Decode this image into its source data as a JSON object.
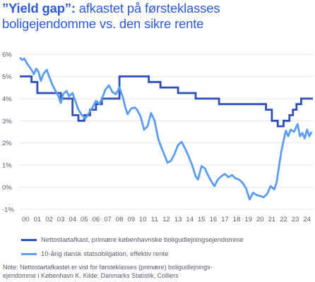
{
  "header": {
    "title_bold": "”Yield gap”:",
    "title_rest": " afkastet på førsteklasses",
    "title_line2": "boligejendomme vs. den sikre rente"
  },
  "colors": {
    "title": "#2e5bd7",
    "series_yield": "#2e4fb8",
    "series_bond": "#5b9cf5",
    "grid": "#e3e6ec",
    "text": "#555b6b"
  },
  "note": {
    "line1": "Note: Nettostartafkastet er vist for førsteklasses (primære) boligudlejnings-",
    "line2": "ejendomme i København K. Kilde: Danmarks Statistik, Colliers"
  },
  "chart_data": {
    "type": "line",
    "title": "”Yield gap”: afkastet på førsteklasses boligejendomme vs. den sikre rente",
    "xlabel": "",
    "ylabel": "",
    "xlim": [
      2000,
      2025
    ],
    "ylim": [
      -1,
      6
    ],
    "y_ticks": [
      -1,
      0,
      1,
      2,
      3,
      4,
      5,
      6
    ],
    "y_tick_labels": [
      "-1%",
      "0%",
      "1%",
      "2%",
      "3%",
      "4%",
      "5%",
      "6%"
    ],
    "x_ticks": [
      2000,
      2001,
      2002,
      2003,
      2004,
      2005,
      2006,
      2007,
      2008,
      2009,
      2010,
      2011,
      2012,
      2013,
      2014,
      2015,
      2016,
      2017,
      2018,
      2019,
      2020,
      2021,
      2022,
      2023,
      2024
    ],
    "x_tick_labels": [
      "00",
      "01",
      "02",
      "03",
      "04",
      "05",
      "06",
      "07",
      "08",
      "09",
      "10",
      "11",
      "12",
      "13",
      "14",
      "15",
      "16",
      "17",
      "18",
      "19",
      "20",
      "21",
      "22",
      "23",
      "24"
    ],
    "grid": true,
    "legend_position": "bottom",
    "series": [
      {
        "name": "Nettostartafkast, primære københavnske boligudlejningsejendomme",
        "color": "#2e4fb8",
        "step": true,
        "points": [
          [
            2000.0,
            5.0
          ],
          [
            2001.0,
            5.0
          ],
          [
            2001.0,
            4.75
          ],
          [
            2001.5,
            4.75
          ],
          [
            2001.5,
            4.25
          ],
          [
            2003.5,
            4.25
          ],
          [
            2003.5,
            4.0
          ],
          [
            2004.5,
            4.0
          ],
          [
            2004.5,
            3.25
          ],
          [
            2005.0,
            3.25
          ],
          [
            2005.0,
            3.0
          ],
          [
            2005.5,
            3.0
          ],
          [
            2005.5,
            3.25
          ],
          [
            2006.0,
            3.25
          ],
          [
            2006.0,
            3.5
          ],
          [
            2006.5,
            3.5
          ],
          [
            2006.5,
            3.75
          ],
          [
            2007.0,
            3.75
          ],
          [
            2007.0,
            4.0
          ],
          [
            2008.5,
            4.0
          ],
          [
            2008.5,
            5.0
          ],
          [
            2011.0,
            5.0
          ],
          [
            2011.0,
            4.75
          ],
          [
            2012.0,
            4.75
          ],
          [
            2012.0,
            4.5
          ],
          [
            2013.5,
            4.5
          ],
          [
            2013.5,
            4.25
          ],
          [
            2015.0,
            4.25
          ],
          [
            2015.0,
            4.0
          ],
          [
            2017.0,
            4.0
          ],
          [
            2017.0,
            3.75
          ],
          [
            2021.0,
            3.75
          ],
          [
            2021.0,
            3.5
          ],
          [
            2021.5,
            3.5
          ],
          [
            2021.5,
            3.0
          ],
          [
            2022.0,
            3.0
          ],
          [
            2022.0,
            2.75
          ],
          [
            2022.5,
            2.75
          ],
          [
            2022.5,
            3.0
          ],
          [
            2023.0,
            3.0
          ],
          [
            2023.0,
            3.25
          ],
          [
            2023.3,
            3.25
          ],
          [
            2023.3,
            3.5
          ],
          [
            2023.6,
            3.5
          ],
          [
            2023.6,
            3.75
          ],
          [
            2024.0,
            3.75
          ],
          [
            2024.0,
            4.0
          ],
          [
            2025.0,
            4.0
          ]
        ]
      },
      {
        "name": "10-årig dansk statsobligation, effektiv rente",
        "color": "#5b9cf5",
        "step": false,
        "points": [
          [
            2000.0,
            5.85
          ],
          [
            2000.2,
            5.75
          ],
          [
            2000.4,
            5.8
          ],
          [
            2000.6,
            5.6
          ],
          [
            2000.8,
            5.45
          ],
          [
            2001.0,
            5.3
          ],
          [
            2001.2,
            5.1
          ],
          [
            2001.4,
            5.35
          ],
          [
            2001.6,
            5.2
          ],
          [
            2001.8,
            4.8
          ],
          [
            2002.0,
            5.1
          ],
          [
            2002.3,
            5.3
          ],
          [
            2002.5,
            5.0
          ],
          [
            2002.8,
            4.6
          ],
          [
            2003.0,
            4.4
          ],
          [
            2003.3,
            4.1
          ],
          [
            2003.5,
            3.8
          ],
          [
            2003.7,
            4.2
          ],
          [
            2004.0,
            4.35
          ],
          [
            2004.2,
            4.1
          ],
          [
            2004.5,
            4.25
          ],
          [
            2004.8,
            3.8
          ],
          [
            2005.0,
            3.5
          ],
          [
            2005.3,
            3.25
          ],
          [
            2005.6,
            3.1
          ],
          [
            2005.9,
            3.35
          ],
          [
            2006.2,
            3.6
          ],
          [
            2006.5,
            3.9
          ],
          [
            2006.8,
            3.75
          ],
          [
            2007.0,
            4.0
          ],
          [
            2007.3,
            4.4
          ],
          [
            2007.6,
            4.6
          ],
          [
            2007.9,
            4.3
          ],
          [
            2008.2,
            4.2
          ],
          [
            2008.5,
            4.5
          ],
          [
            2008.8,
            4.05
          ],
          [
            2009.0,
            3.6
          ],
          [
            2009.2,
            3.3
          ],
          [
            2009.5,
            3.55
          ],
          [
            2009.8,
            3.6
          ],
          [
            2010.0,
            3.5
          ],
          [
            2010.3,
            3.2
          ],
          [
            2010.6,
            2.6
          ],
          [
            2010.9,
            2.75
          ],
          [
            2011.2,
            3.35
          ],
          [
            2011.5,
            3.0
          ],
          [
            2011.8,
            2.2
          ],
          [
            2012.0,
            1.9
          ],
          [
            2012.3,
            1.5
          ],
          [
            2012.6,
            1.1
          ],
          [
            2012.9,
            1.2
          ],
          [
            2013.2,
            1.5
          ],
          [
            2013.5,
            1.9
          ],
          [
            2013.8,
            2.05
          ],
          [
            2014.1,
            1.75
          ],
          [
            2014.4,
            1.4
          ],
          [
            2014.7,
            1.0
          ],
          [
            2015.0,
            0.5
          ],
          [
            2015.2,
            0.35
          ],
          [
            2015.5,
            0.95
          ],
          [
            2015.8,
            0.85
          ],
          [
            2016.0,
            0.6
          ],
          [
            2016.3,
            0.3
          ],
          [
            2016.6,
            0.05
          ],
          [
            2016.9,
            0.35
          ],
          [
            2017.2,
            0.5
          ],
          [
            2017.5,
            0.6
          ],
          [
            2017.8,
            0.45
          ],
          [
            2018.1,
            0.55
          ],
          [
            2018.4,
            0.4
          ],
          [
            2018.7,
            0.35
          ],
          [
            2019.0,
            0.2
          ],
          [
            2019.3,
            -0.05
          ],
          [
            2019.6,
            -0.55
          ],
          [
            2019.9,
            -0.25
          ],
          [
            2020.2,
            -0.35
          ],
          [
            2020.5,
            -0.4
          ],
          [
            2020.8,
            -0.45
          ],
          [
            2021.1,
            -0.3
          ],
          [
            2021.4,
            0.05
          ],
          [
            2021.7,
            -0.1
          ],
          [
            2021.9,
            0.2
          ],
          [
            2022.1,
            0.9
          ],
          [
            2022.3,
            1.6
          ],
          [
            2022.5,
            2.1
          ],
          [
            2022.7,
            2.55
          ],
          [
            2022.9,
            2.3
          ],
          [
            2023.1,
            2.6
          ],
          [
            2023.4,
            2.5
          ],
          [
            2023.7,
            2.85
          ],
          [
            2023.9,
            2.3
          ],
          [
            2024.1,
            2.45
          ],
          [
            2024.3,
            2.2
          ],
          [
            2024.5,
            2.6
          ],
          [
            2024.7,
            2.3
          ],
          [
            2024.9,
            2.5
          ]
        ]
      }
    ]
  }
}
